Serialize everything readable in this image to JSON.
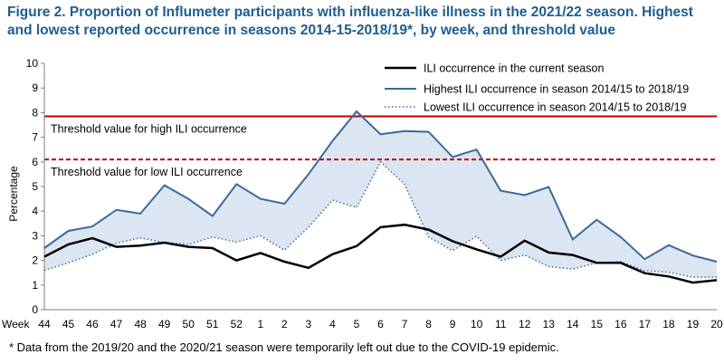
{
  "title_lines": [
    "Figure 2. Proportion of Influmeter participants with influenza-like illness in the 2021/22 season. Highest",
    "and lowest reported occurrence in seasons 2014-15-2018/19*, by week, and threshold value"
  ],
  "footnote": "* Data from the 2019/20 and the 2020/21 season were temporarily left out due to the COVID-19 epidemic.",
  "colors": {
    "title": "#1f5d8e",
    "current": "#000000",
    "highest": "#3a6a9b",
    "lowest": "#3a6a9b",
    "band_fill": "#dce6f2",
    "threshold": "#c00000",
    "axis": "#808080"
  },
  "chart_data": {
    "type": "line",
    "xlabel": "Week",
    "ylabel": "Percentage",
    "ylim": [
      0,
      10
    ],
    "yticks": [
      0,
      1,
      2,
      3,
      4,
      5,
      6,
      7,
      8,
      9,
      10
    ],
    "grid": false,
    "legend_position": "top-right",
    "categories": [
      "44",
      "45",
      "46",
      "47",
      "48",
      "49",
      "50",
      "51",
      "52",
      "1",
      "2",
      "3",
      "4",
      "5",
      "6",
      "7",
      "8",
      "9",
      "10",
      "11",
      "12",
      "13",
      "14",
      "15",
      "16",
      "17",
      "18",
      "19",
      "20"
    ],
    "series": [
      {
        "name": "ILI occurrence in the current season",
        "style": "solid-thick",
        "values": [
          2.15,
          2.65,
          2.9,
          2.55,
          2.6,
          2.72,
          2.55,
          2.5,
          2.0,
          2.3,
          1.95,
          1.7,
          2.25,
          2.58,
          3.35,
          3.45,
          3.25,
          2.78,
          2.45,
          2.15,
          2.8,
          2.32,
          2.22,
          1.9,
          1.9,
          1.48,
          1.35,
          1.1,
          1.2
        ]
      },
      {
        "name": "Highest ILI occurrence in season 2014/15 to 2018/19",
        "style": "solid",
        "values": [
          2.5,
          3.2,
          3.38,
          4.05,
          3.9,
          5.05,
          4.5,
          3.8,
          5.1,
          4.5,
          4.3,
          5.5,
          6.85,
          8.05,
          7.12,
          7.25,
          7.22,
          6.2,
          6.5,
          4.83,
          4.65,
          4.98,
          2.85,
          3.65,
          2.95,
          2.05,
          2.62,
          2.2,
          1.95
        ]
      },
      {
        "name": "Lowest ILI occurrence in season 2014/15 to 2018/19",
        "style": "dotted",
        "values": [
          1.6,
          1.9,
          2.25,
          2.7,
          2.92,
          2.72,
          2.65,
          2.95,
          2.75,
          3.0,
          2.42,
          3.35,
          4.45,
          4.15,
          6.0,
          5.1,
          2.95,
          2.4,
          2.98,
          2.0,
          2.22,
          1.75,
          1.65,
          1.9,
          1.95,
          1.58,
          1.52,
          1.32,
          1.32
        ]
      }
    ],
    "thresholds": [
      {
        "label": "Threshold value for high ILI occurrence",
        "value": 7.85,
        "style": "solid"
      },
      {
        "label": "Threshold value for low ILI occurrence",
        "value": 6.1,
        "style": "dashed"
      }
    ]
  }
}
